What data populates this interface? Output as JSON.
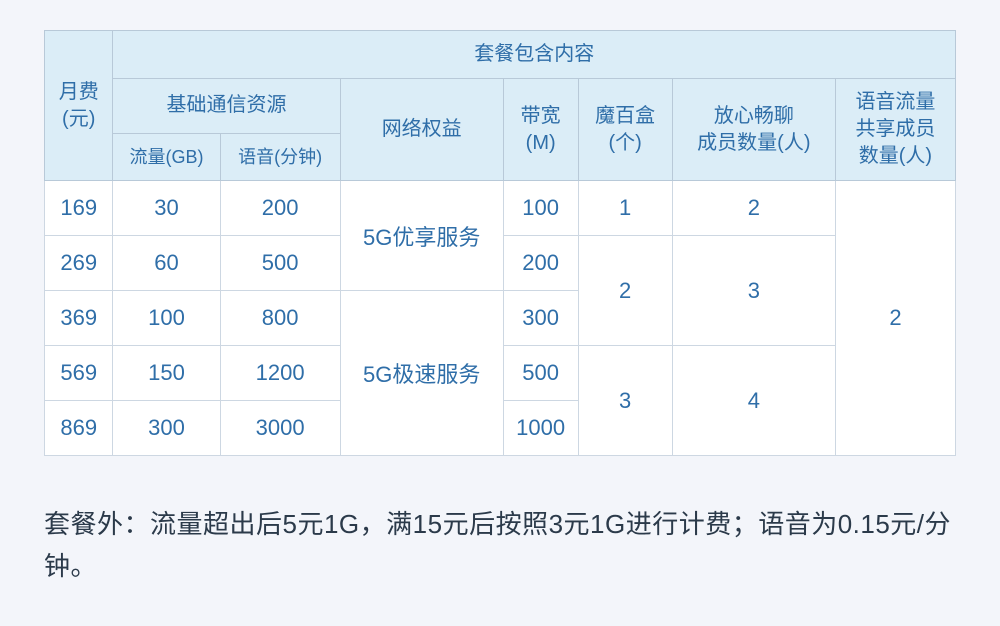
{
  "table": {
    "type": "table",
    "header_bg": "#dbedf7",
    "header_text_color": "#2f6ea8",
    "cell_text_color": "#2f6ea8",
    "border_color_header": "#b8c9d8",
    "border_color_cell": "#cdd7e2",
    "background_color": "#ffffff",
    "page_background": "#f3f5fa",
    "header_fontsize": 20,
    "subheader_fontsize": 18,
    "cell_fontsize": 22,
    "headers": {
      "fee": "月费\n(元)",
      "contents": "套餐包含内容",
      "basic": "基础通信资源",
      "data": "流量(GB)",
      "voice": "语音(分钟)",
      "network": "网络权益",
      "bandwidth": "带宽\n(M)",
      "box": "魔百盒\n(个)",
      "chat": "放心畅聊\n成员数量(人)",
      "share": "语音流量\n共享成员\n数量(人)"
    },
    "network_service_1": "5G优享服务",
    "network_service_2": "5G极速服务",
    "rows": [
      {
        "fee": "169",
        "data": "30",
        "voice": "200",
        "bandwidth": "100",
        "box": "1",
        "chat": "2"
      },
      {
        "fee": "269",
        "data": "60",
        "voice": "500",
        "bandwidth": "200"
      },
      {
        "fee": "369",
        "data": "100",
        "voice": "800",
        "bandwidth": "300",
        "box": "2",
        "chat": "3"
      },
      {
        "fee": "569",
        "data": "150",
        "voice": "1200",
        "bandwidth": "500"
      },
      {
        "fee": "869",
        "data": "300",
        "voice": "3000",
        "bandwidth": "1000",
        "box": "3",
        "chat": "4"
      }
    ],
    "share_value": "2"
  },
  "footnote": "套餐外：流量超出后5元1G，满15元后按照3元1G进行计费；语音为0.15元/分钟。"
}
